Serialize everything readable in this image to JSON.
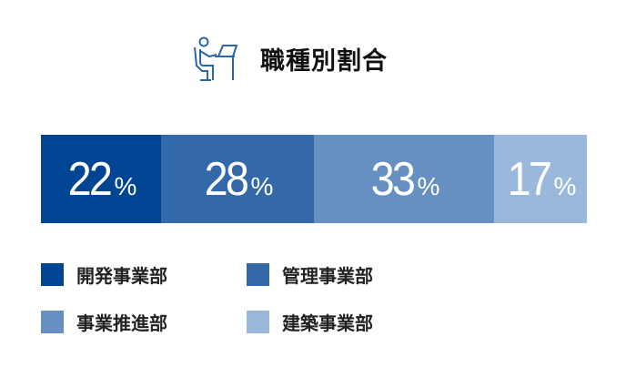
{
  "chart_data": {
    "type": "bar",
    "stacked_percent": true,
    "orientation": "horizontal",
    "title": "職種別割合",
    "categories": [
      "開発事業部",
      "管理事業部",
      "事業推進部",
      "建築事業部"
    ],
    "values": [
      22,
      28,
      33,
      17
    ],
    "unit": "%",
    "colors": [
      "#004494",
      "#3369a9",
      "#6690c1",
      "#9ab8dc"
    ],
    "legend_placement": "bottom",
    "grid": false
  },
  "icons": {
    "title_icon": "person-at-desk-icon"
  }
}
